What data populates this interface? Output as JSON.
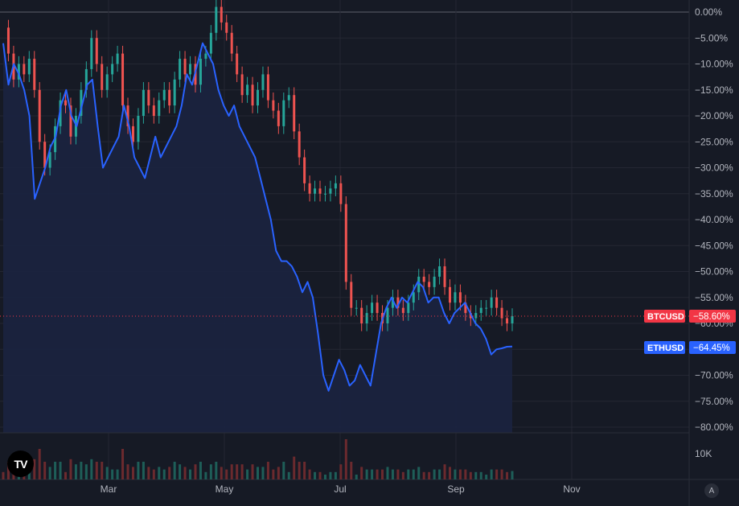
{
  "chart_data": {
    "type": "line",
    "comparison_mode": "percent",
    "x_axis_ticks": [
      "Mar",
      "May",
      "Jul",
      "Sep",
      "Nov"
    ],
    "y_axis_ticks": [
      "0.00%",
      "−5.00%",
      "−10.00%",
      "−15.00%",
      "−20.00%",
      "−25.00%",
      "−30.00%",
      "−35.00%",
      "−40.00%",
      "−45.00%",
      "−50.00%",
      "−55.00%",
      "−60.00%",
      "−65.00%",
      "−70.00%",
      "−75.00%",
      "−80.00%"
    ],
    "ylim": [
      -80,
      0
    ],
    "volume_label": "10K",
    "series": [
      {
        "name": "BTCUSD",
        "style": "candles",
        "last_label": "−58.60%",
        "color": "#f23645",
        "closes": [
          -3,
          -8,
          -13,
          -10,
          -12,
          -9,
          -15,
          -25,
          -30,
          -27,
          -22,
          -17,
          -18,
          -24,
          -20,
          -15,
          -11,
          -5,
          -10,
          -15,
          -12,
          -10,
          -8,
          -18,
          -22,
          -25,
          -20,
          -15,
          -18,
          -20,
          -17,
          -15,
          -18,
          -13,
          -9,
          -12,
          -10,
          -14,
          -9,
          -8,
          -4,
          1,
          -2,
          -4,
          -8,
          -12,
          -16,
          -14,
          -18,
          -15,
          -12,
          -17,
          -19,
          -22,
          -17,
          -16,
          -23,
          -28,
          -33,
          -35,
          -34,
          -35,
          -35,
          -34,
          -33,
          -37,
          -52,
          -57,
          -57,
          -60,
          -58,
          -56,
          -58,
          -60,
          -57,
          -55,
          -57,
          -58,
          -56,
          -54,
          -51,
          -52,
          -53,
          -51,
          -49,
          -53,
          -56,
          -54,
          -56,
          -58,
          -59,
          -58,
          -57,
          -57,
          -55,
          -57,
          -59,
          -60,
          -58.6
        ]
      },
      {
        "name": "ETHUSD",
        "style": "line",
        "last_label": "−64.45%",
        "color": "#2962ff",
        "closes": [
          -6,
          -14,
          -10,
          -12,
          -15,
          -20,
          -36,
          -33,
          -30,
          -26,
          -24,
          -18,
          -15,
          -20,
          -22,
          -18,
          -14,
          -13,
          -22,
          -30,
          -28,
          -26,
          -24,
          -18,
          -22,
          -28,
          -30,
          -32,
          -28,
          -24,
          -28,
          -26,
          -24,
          -22,
          -18,
          -12,
          -14,
          -10,
          -6,
          -8,
          -10,
          -15,
          -18,
          -20,
          -18,
          -22,
          -24,
          -26,
          -28,
          -32,
          -36,
          -40,
          -46,
          -48,
          -48,
          -49,
          -51,
          -54,
          -52,
          -55,
          -62,
          -70,
          -73,
          -70,
          -67,
          -69,
          -72,
          -71,
          -68,
          -70,
          -72,
          -66,
          -60,
          -57,
          -55,
          -57,
          -55,
          -56,
          -54,
          -52,
          -53,
          -56,
          -55,
          -55,
          -58,
          -60,
          -58,
          -57,
          -56,
          -58,
          -60,
          -61,
          -63,
          -66,
          -65,
          -64.8,
          -64.5,
          -64.45
        ]
      }
    ]
  }
}
